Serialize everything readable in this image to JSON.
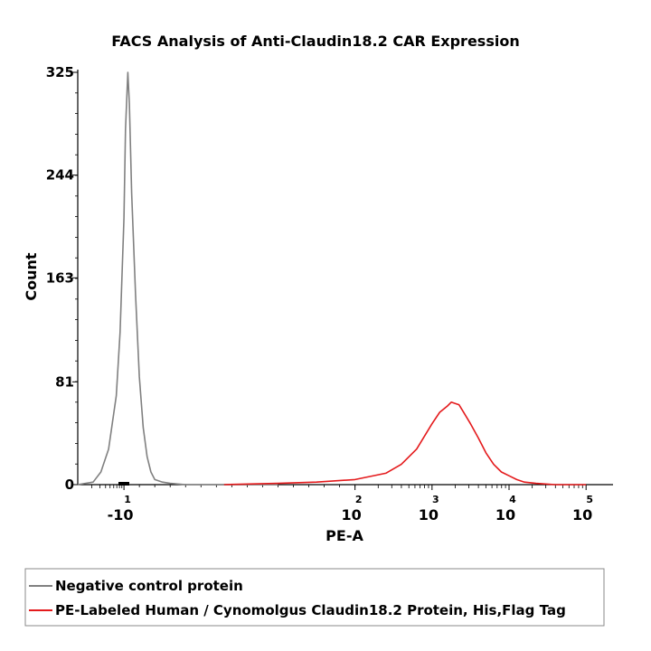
{
  "chart_data": {
    "type": "line",
    "title": "FACS Analysis of Anti-Claudin18.2 CAR Expression",
    "xlabel": "PE-A",
    "ylabel": "Count",
    "x_scale": "log",
    "y_ticks": [
      "325",
      "244",
      "163",
      "81",
      "0"
    ],
    "y_tick_values": [
      325,
      244,
      163,
      81,
      0
    ],
    "ylim": [
      0,
      325
    ],
    "x_ticks": [
      {
        "base": "-10",
        "exp": "1",
        "pos": -1
      },
      {
        "base": "10",
        "exp": "2",
        "pos": 2
      },
      {
        "base": "10",
        "exp": "3",
        "pos": 3
      },
      {
        "base": "10",
        "exp": "4",
        "pos": 4
      },
      {
        "base": "10",
        "exp": "5",
        "pos": 5
      }
    ],
    "xlim_positions": [
      -1.6,
      5.35
    ],
    "legend_placement": "bottom",
    "series": [
      {
        "name": "Negative control protein",
        "color": "#808080",
        "x": [
          -1.6,
          -1.4,
          -1.3,
          -1.2,
          -1.1,
          -1.05,
          -1.0,
          -0.98,
          -0.95,
          -0.93,
          -0.9,
          -0.85,
          -0.8,
          -0.75,
          -0.7,
          -0.65,
          -0.6,
          -0.5,
          -0.4,
          -0.2,
          0.0,
          0.5,
          1.0
        ],
        "y": [
          0,
          2,
          10,
          28,
          70,
          120,
          210,
          280,
          325,
          300,
          230,
          150,
          85,
          45,
          22,
          10,
          4,
          2,
          1,
          0,
          0,
          0,
          0
        ]
      },
      {
        "name": "PE-Labeled Human / Cynomolgus Claudin18.2 Protein, His,Flag Tag",
        "color": "#e41a1c",
        "x": [
          0.3,
          1.0,
          1.5,
          2.0,
          2.4,
          2.6,
          2.8,
          2.9,
          3.0,
          3.1,
          3.2,
          3.25,
          3.3,
          3.35,
          3.4,
          3.5,
          3.6,
          3.7,
          3.8,
          3.9,
          4.0,
          4.1,
          4.2,
          4.35,
          4.6,
          5.0
        ],
        "y": [
          0,
          1,
          2,
          4,
          9,
          16,
          28,
          38,
          48,
          57,
          62,
          65,
          64,
          63,
          58,
          48,
          37,
          25,
          16,
          10,
          7,
          4,
          2,
          1,
          0,
          0
        ]
      }
    ]
  }
}
